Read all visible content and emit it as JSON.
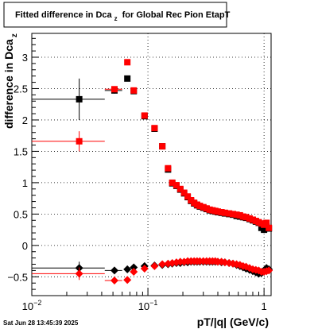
{
  "chart_data": {
    "type": "scatter",
    "title": "Fitted difference in Dca",
    "title_sub": "z",
    "title_rest": "for Global Rec Pion EtapT",
    "xlabel": "pT/|q| (GeV/c)",
    "ylabel": "difference in Dca",
    "ylabel_sub": "z",
    "xscale": "log",
    "xlim": [
      0.01,
      1.15
    ],
    "ylim": [
      -0.8,
      3.38
    ],
    "grid": true,
    "x_ticks": [
      {
        "value": 0.01,
        "base": "10",
        "exp": "−2"
      },
      {
        "value": 0.1,
        "base": "10",
        "exp": "−1"
      },
      {
        "value": 1,
        "base": "1",
        "exp": ""
      }
    ],
    "y_ticks": [
      {
        "value": -0.5,
        "label": "−0.5"
      },
      {
        "value": 0,
        "label": "0"
      },
      {
        "value": 0.5,
        "label": "0.5"
      },
      {
        "value": 1,
        "label": "1"
      },
      {
        "value": 1.5,
        "label": "1.5"
      },
      {
        "value": 2,
        "label": "2"
      },
      {
        "value": 2.5,
        "label": "2.5"
      },
      {
        "value": 3,
        "label": "3"
      }
    ],
    "footer": "Sat Jun 28 13:45:39 2025",
    "series": [
      {
        "marker": "square",
        "color": "#000000",
        "points": [
          {
            "x": 0.0256,
            "y": 2.33,
            "xlo": 0.01,
            "xhi": 0.0425,
            "ylo": 2.0,
            "yhi": 2.66
          },
          {
            "x": 0.0515,
            "y": 2.47,
            "xlo": 0.0425,
            "xhi": 0.06,
            "ylo": 2.42,
            "yhi": 2.52
          },
          {
            "x": 0.0665,
            "y": 2.66,
            "xlo": 0.064,
            "xhi": 0.069,
            "ylo": 2.62,
            "yhi": 2.7
          },
          {
            "x": 0.0755,
            "y": 2.46
          },
          {
            "x": 0.0935,
            "y": 2.06
          },
          {
            "x": 0.114,
            "y": 1.86
          },
          {
            "x": 0.133,
            "y": 1.58
          },
          {
            "x": 0.149,
            "y": 1.21
          },
          {
            "x": 0.162,
            "y": 0.99
          },
          {
            "x": 0.176,
            "y": 0.95
          },
          {
            "x": 0.19,
            "y": 0.89
          },
          {
            "x": 0.205,
            "y": 0.83
          },
          {
            "x": 0.22,
            "y": 0.77
          },
          {
            "x": 0.235,
            "y": 0.71
          },
          {
            "x": 0.25,
            "y": 0.67
          },
          {
            "x": 0.265,
            "y": 0.64
          },
          {
            "x": 0.28,
            "y": 0.62
          },
          {
            "x": 0.3,
            "y": 0.6
          },
          {
            "x": 0.32,
            "y": 0.58
          },
          {
            "x": 0.34,
            "y": 0.56
          },
          {
            "x": 0.36,
            "y": 0.55
          },
          {
            "x": 0.38,
            "y": 0.54
          },
          {
            "x": 0.4,
            "y": 0.53
          },
          {
            "x": 0.43,
            "y": 0.52
          },
          {
            "x": 0.46,
            "y": 0.51
          },
          {
            "x": 0.5,
            "y": 0.5
          },
          {
            "x": 0.54,
            "y": 0.49
          },
          {
            "x": 0.58,
            "y": 0.47
          },
          {
            "x": 0.62,
            "y": 0.46
          },
          {
            "x": 0.66,
            "y": 0.45
          },
          {
            "x": 0.7,
            "y": 0.44
          },
          {
            "x": 0.75,
            "y": 0.42
          },
          {
            "x": 0.8,
            "y": 0.4
          },
          {
            "x": 0.85,
            "y": 0.38
          },
          {
            "x": 0.9,
            "y": 0.36
          },
          {
            "x": 0.95,
            "y": 0.28,
            "ylo": 0.22,
            "yhi": 0.34
          },
          {
            "x": 1.0,
            "y": 0.25,
            "ylo": 0.2,
            "yhi": 0.3
          },
          {
            "x": 1.05,
            "y": 0.3,
            "ylo": 0.24,
            "yhi": 0.36
          },
          {
            "x": 1.1,
            "y": 0.27,
            "ylo": 0.22,
            "yhi": 0.32
          }
        ]
      },
      {
        "marker": "square",
        "color": "#ff0000",
        "points": [
          {
            "x": 0.0256,
            "y": 1.66,
            "xlo": 0.01,
            "xhi": 0.0425,
            "ylo": 1.5,
            "yhi": 1.82
          },
          {
            "x": 0.0515,
            "y": 2.49,
            "xlo": 0.0425,
            "xhi": 0.06,
            "ylo": 2.45,
            "yhi": 2.53
          },
          {
            "x": 0.0665,
            "y": 2.92,
            "xlo": 0.064,
            "xhi": 0.069,
            "ylo": 2.88,
            "yhi": 2.96
          },
          {
            "x": 0.0755,
            "y": 2.47
          },
          {
            "x": 0.0935,
            "y": 2.07
          },
          {
            "x": 0.114,
            "y": 1.87
          },
          {
            "x": 0.133,
            "y": 1.58
          },
          {
            "x": 0.149,
            "y": 1.23
          },
          {
            "x": 0.162,
            "y": 1.0
          },
          {
            "x": 0.176,
            "y": 0.96
          },
          {
            "x": 0.19,
            "y": 0.9
          },
          {
            "x": 0.205,
            "y": 0.84
          },
          {
            "x": 0.22,
            "y": 0.78
          },
          {
            "x": 0.235,
            "y": 0.72
          },
          {
            "x": 0.25,
            "y": 0.68
          },
          {
            "x": 0.265,
            "y": 0.65
          },
          {
            "x": 0.28,
            "y": 0.63
          },
          {
            "x": 0.3,
            "y": 0.61
          },
          {
            "x": 0.32,
            "y": 0.59
          },
          {
            "x": 0.34,
            "y": 0.57
          },
          {
            "x": 0.36,
            "y": 0.56
          },
          {
            "x": 0.38,
            "y": 0.55
          },
          {
            "x": 0.4,
            "y": 0.54
          },
          {
            "x": 0.43,
            "y": 0.53
          },
          {
            "x": 0.46,
            "y": 0.52
          },
          {
            "x": 0.5,
            "y": 0.51
          },
          {
            "x": 0.54,
            "y": 0.5
          },
          {
            "x": 0.58,
            "y": 0.49
          },
          {
            "x": 0.62,
            "y": 0.48
          },
          {
            "x": 0.66,
            "y": 0.46
          },
          {
            "x": 0.7,
            "y": 0.45
          },
          {
            "x": 0.75,
            "y": 0.43
          },
          {
            "x": 0.8,
            "y": 0.41
          },
          {
            "x": 0.85,
            "y": 0.39
          },
          {
            "x": 0.9,
            "y": 0.37
          },
          {
            "x": 0.95,
            "y": 0.35
          },
          {
            "x": 1.0,
            "y": 0.33
          },
          {
            "x": 1.05,
            "y": 0.36
          },
          {
            "x": 1.1,
            "y": 0.28
          }
        ]
      },
      {
        "marker": "diamond",
        "color": "#000000",
        "points": [
          {
            "x": 0.0256,
            "y": -0.36,
            "xlo": 0.01,
            "xhi": 0.0425,
            "ylo": -0.46,
            "yhi": -0.26
          },
          {
            "x": 0.0515,
            "y": -0.4,
            "xlo": 0.0425,
            "xhi": 0.06,
            "ylo": -0.44,
            "yhi": -0.36
          },
          {
            "x": 0.0665,
            "y": -0.38,
            "xlo": 0.064,
            "xhi": 0.069
          },
          {
            "x": 0.0755,
            "y": -0.35
          },
          {
            "x": 0.0935,
            "y": -0.33
          },
          {
            "x": 0.114,
            "y": -0.32
          },
          {
            "x": 0.133,
            "y": -0.31
          },
          {
            "x": 0.149,
            "y": -0.3
          },
          {
            "x": 0.162,
            "y": -0.29
          },
          {
            "x": 0.176,
            "y": -0.28
          },
          {
            "x": 0.19,
            "y": -0.28
          },
          {
            "x": 0.205,
            "y": -0.27
          },
          {
            "x": 0.22,
            "y": -0.27
          },
          {
            "x": 0.235,
            "y": -0.26
          },
          {
            "x": 0.25,
            "y": -0.26
          },
          {
            "x": 0.265,
            "y": -0.26
          },
          {
            "x": 0.28,
            "y": -0.26
          },
          {
            "x": 0.3,
            "y": -0.26
          },
          {
            "x": 0.32,
            "y": -0.26
          },
          {
            "x": 0.34,
            "y": -0.26
          },
          {
            "x": 0.36,
            "y": -0.26
          },
          {
            "x": 0.38,
            "y": -0.26
          },
          {
            "x": 0.4,
            "y": -0.26
          },
          {
            "x": 0.43,
            "y": -0.27
          },
          {
            "x": 0.46,
            "y": -0.27
          },
          {
            "x": 0.5,
            "y": -0.28
          },
          {
            "x": 0.54,
            "y": -0.29
          },
          {
            "x": 0.58,
            "y": -0.31
          },
          {
            "x": 0.62,
            "y": -0.33
          },
          {
            "x": 0.66,
            "y": -0.35
          },
          {
            "x": 0.7,
            "y": -0.37
          },
          {
            "x": 0.75,
            "y": -0.39
          },
          {
            "x": 0.8,
            "y": -0.41
          },
          {
            "x": 0.85,
            "y": -0.43
          },
          {
            "x": 0.9,
            "y": -0.45
          },
          {
            "x": 0.95,
            "y": -0.44
          },
          {
            "x": 1.0,
            "y": -0.4
          },
          {
            "x": 1.05,
            "y": -0.36
          },
          {
            "x": 1.1,
            "y": -0.38
          }
        ]
      },
      {
        "marker": "diamond",
        "color": "#ff0000",
        "points": [
          {
            "x": 0.0256,
            "y": -0.45,
            "xlo": 0.01,
            "xhi": 0.0425,
            "ylo": -0.55,
            "yhi": -0.35
          },
          {
            "x": 0.0515,
            "y": -0.56,
            "xlo": 0.0425,
            "xhi": 0.06,
            "ylo": -0.6,
            "yhi": -0.52
          },
          {
            "x": 0.0665,
            "y": -0.55,
            "xlo": 0.064,
            "xhi": 0.069
          },
          {
            "x": 0.0755,
            "y": -0.42
          },
          {
            "x": 0.0935,
            "y": -0.37
          },
          {
            "x": 0.114,
            "y": -0.33
          },
          {
            "x": 0.133,
            "y": -0.3
          },
          {
            "x": 0.149,
            "y": -0.29
          },
          {
            "x": 0.162,
            "y": -0.28
          },
          {
            "x": 0.176,
            "y": -0.27
          },
          {
            "x": 0.19,
            "y": -0.26
          },
          {
            "x": 0.205,
            "y": -0.26
          },
          {
            "x": 0.22,
            "y": -0.25
          },
          {
            "x": 0.235,
            "y": -0.25
          },
          {
            "x": 0.25,
            "y": -0.25
          },
          {
            "x": 0.265,
            "y": -0.25
          },
          {
            "x": 0.28,
            "y": -0.25
          },
          {
            "x": 0.3,
            "y": -0.25
          },
          {
            "x": 0.32,
            "y": -0.25
          },
          {
            "x": 0.34,
            "y": -0.25
          },
          {
            "x": 0.36,
            "y": -0.25
          },
          {
            "x": 0.38,
            "y": -0.25
          },
          {
            "x": 0.4,
            "y": -0.26
          },
          {
            "x": 0.43,
            "y": -0.26
          },
          {
            "x": 0.46,
            "y": -0.27
          },
          {
            "x": 0.5,
            "y": -0.28
          },
          {
            "x": 0.54,
            "y": -0.29
          },
          {
            "x": 0.58,
            "y": -0.3
          },
          {
            "x": 0.62,
            "y": -0.31
          },
          {
            "x": 0.66,
            "y": -0.33
          },
          {
            "x": 0.7,
            "y": -0.34
          },
          {
            "x": 0.75,
            "y": -0.36
          },
          {
            "x": 0.8,
            "y": -0.38
          },
          {
            "x": 0.85,
            "y": -0.39
          },
          {
            "x": 0.9,
            "y": -0.4
          },
          {
            "x": 0.95,
            "y": -0.42
          },
          {
            "x": 1.0,
            "y": -0.42
          },
          {
            "x": 1.05,
            "y": -0.41
          },
          {
            "x": 1.1,
            "y": -0.4
          }
        ]
      }
    ]
  }
}
